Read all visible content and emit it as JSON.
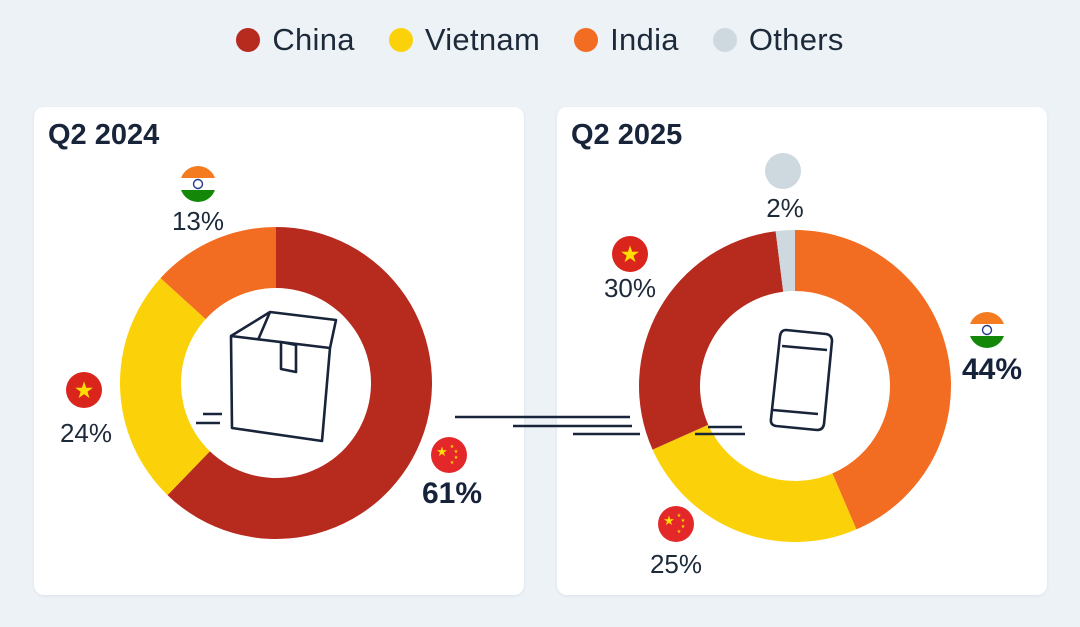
{
  "legend": [
    {
      "label": "China",
      "color": "#b72a1e"
    },
    {
      "label": "Vietnam",
      "color": "#fbd20a"
    },
    {
      "label": "India",
      "color": "#f26d21"
    },
    {
      "label": "Others",
      "color": "#cdd8df"
    }
  ],
  "chart_data": [
    {
      "type": "pie",
      "title": "Q2 2024",
      "center_icon": "package-box-icon",
      "slices": [
        {
          "name": "China",
          "value": 61,
          "label": "61%",
          "flag": "china-flag-icon"
        },
        {
          "name": "Vietnam",
          "value": 24,
          "label": "24%",
          "flag": "vietnam-flag-icon"
        },
        {
          "name": "India",
          "value": 13,
          "label": "13%",
          "flag": "india-flag-icon"
        }
      ]
    },
    {
      "type": "pie",
      "title": "Q2 2025",
      "center_icon": "smartphone-icon",
      "slices": [
        {
          "name": "India",
          "value": 44,
          "label": "44%",
          "flag": "india-flag-icon"
        },
        {
          "name": "Vietnam",
          "value": 25,
          "label": "25%",
          "flag": "china-flag-icon"
        },
        {
          "name": "China",
          "value": 30,
          "label": "30%",
          "flag": "vietnam-flag-icon"
        },
        {
          "name": "Others",
          "value": 2,
          "label": "2%",
          "flag": "others-dot-icon"
        }
      ]
    }
  ]
}
